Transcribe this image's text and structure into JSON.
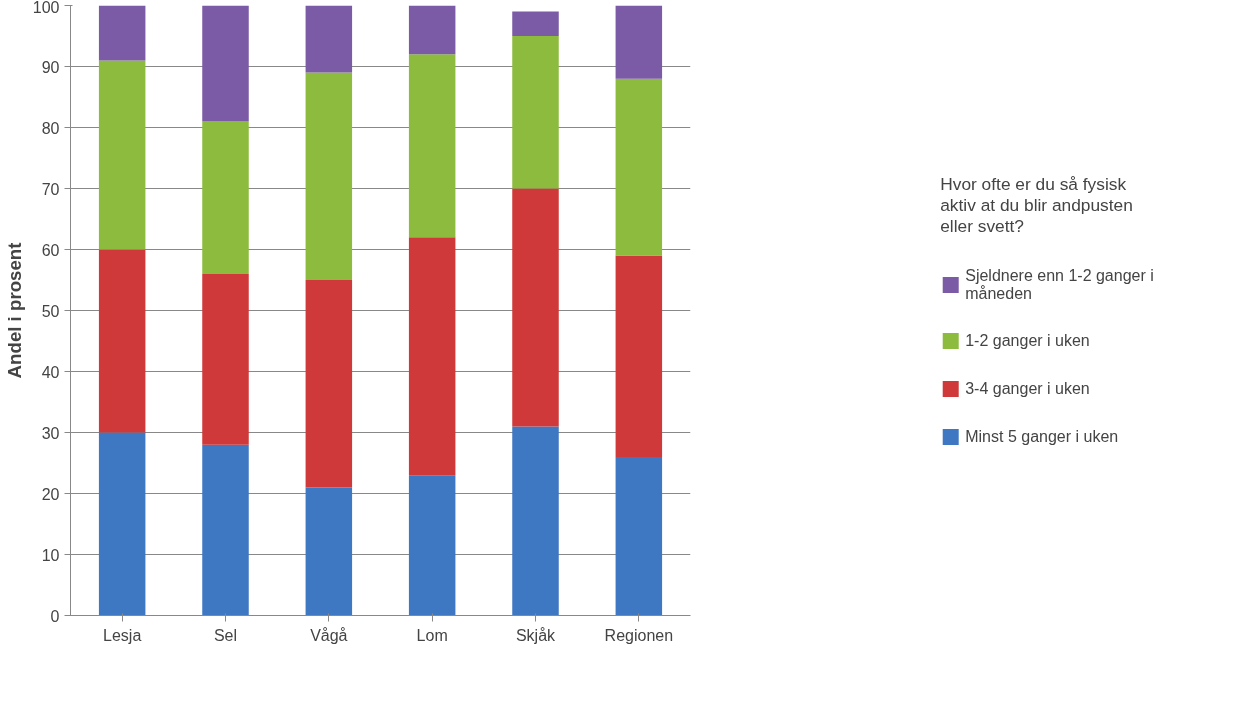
{
  "chart_data": {
    "type": "bar",
    "stacked": true,
    "ylabel": "Andel i prosent",
    "legend_title": "Hvor ofte er du så fysisk aktiv at du blir andpusten eller svett?",
    "categories": [
      "Lesja",
      "Sel",
      "Vågå",
      "Lom",
      "Skjåk",
      "Regionen"
    ],
    "series": [
      {
        "name": "Minst 5 ganger i uken",
        "color": "#3f78c2",
        "values": [
          30,
          28,
          21,
          23,
          31,
          26
        ]
      },
      {
        "name": "3-4 ganger i uken",
        "color": "#d0393a",
        "values": [
          30,
          28,
          34,
          39,
          39,
          33
        ]
      },
      {
        "name": "1-2 ganger i uken",
        "color": "#8dbb3e",
        "values": [
          31,
          25,
          34,
          30,
          25,
          29
        ]
      },
      {
        "name": "Sjeldnere enn 1-2 ganger i måneden",
        "color": "#7b5aa6",
        "values": [
          9,
          19,
          11,
          8,
          4,
          12
        ]
      }
    ],
    "ylim": [
      0,
      100
    ],
    "yticks": [
      0,
      10,
      20,
      30,
      40,
      50,
      60,
      70,
      80,
      90,
      100
    ],
    "grid": "y",
    "legend": "right"
  }
}
